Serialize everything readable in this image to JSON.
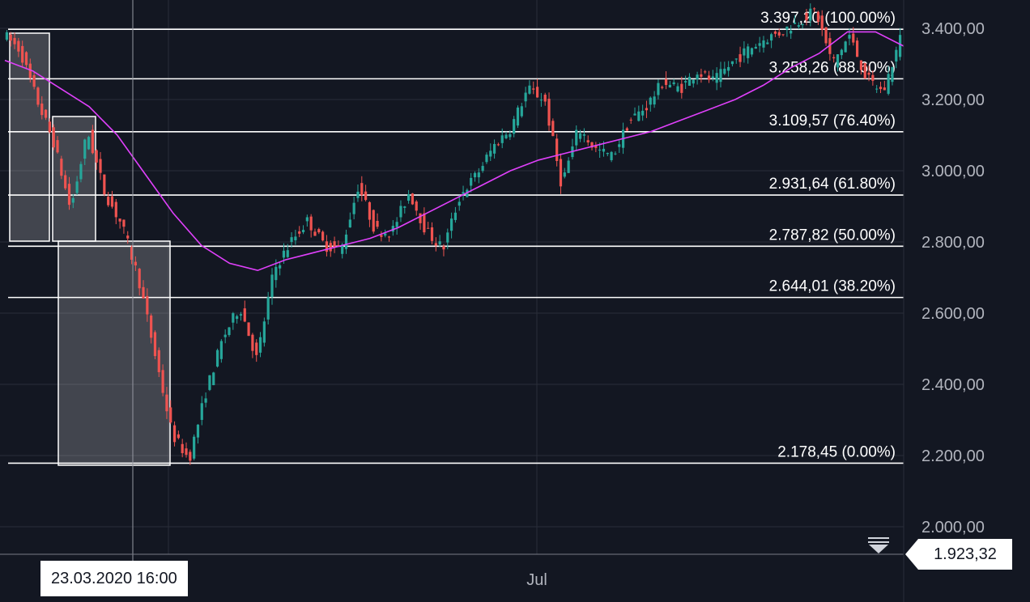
{
  "chart_data": {
    "type": "candlestick",
    "price_axis": {
      "ticks": [
        "3.400,00",
        "3.200,00",
        "3.000,00",
        "2.800,00",
        "2.600,00",
        "2.400,00",
        "2.200,00",
        "2.000,00"
      ],
      "tick_values": [
        3400,
        3200,
        3000,
        2800,
        2600,
        2400,
        2200,
        2000
      ]
    },
    "time_axis": {
      "ticks": [
        "Jul"
      ]
    },
    "fibonacci": [
      {
        "label": "3.397,20 (100.00%)",
        "value": 3397.2,
        "pct": 100.0
      },
      {
        "label": "3.258,26 (88.60%)",
        "value": 3258.26,
        "pct": 88.6
      },
      {
        "label": "3.109,57 (76.40%)",
        "value": 3109.57,
        "pct": 76.4
      },
      {
        "label": "2.931,64 (61.80%)",
        "value": 2931.64,
        "pct": 61.8
      },
      {
        "label": "2.787,82 (50.00%)",
        "value": 2787.82,
        "pct": 50.0
      },
      {
        "label": "2.644,01 (38.20%)",
        "value": 2644.01,
        "pct": 38.2
      },
      {
        "label": "2.178,45 (0.00%)",
        "value": 2178.45,
        "pct": 0.0
      }
    ],
    "price_path": [
      3385,
      3340,
      3200,
      3080,
      2890,
      3110,
      2940,
      2850,
      2700,
      2480,
      2260,
      2190,
      2380,
      2530,
      2620,
      2470,
      2720,
      2800,
      2860,
      2790,
      2780,
      2960,
      2830,
      2830,
      2940,
      2830,
      2780,
      2930,
      2990,
      3070,
      3120,
      3230,
      3200,
      2960,
      3120,
      3060,
      3040,
      3140,
      3180,
      3250,
      3230,
      3280,
      3250,
      3300,
      3340,
      3370,
      3390,
      3420,
      3450,
      3300,
      3380,
      3260,
      3220,
      3370
    ],
    "moving_average": [
      3310,
      3280,
      3230,
      3180,
      3100,
      2990,
      2880,
      2790,
      2740,
      2720,
      2750,
      2770,
      2790,
      2810,
      2840,
      2880,
      2920,
      2960,
      3000,
      3030,
      3050,
      3070,
      3090,
      3110,
      3140,
      3170,
      3200,
      3240,
      3290,
      3330,
      3390,
      3390,
      3350
    ],
    "current_price": "1.923,32",
    "crosshair_date": "23.03.2020 16:00",
    "colors": {
      "up": "#26a69a",
      "down": "#ef5350",
      "ma": "#e040fb",
      "background": "#131722",
      "grid": "#2a2e39"
    }
  }
}
